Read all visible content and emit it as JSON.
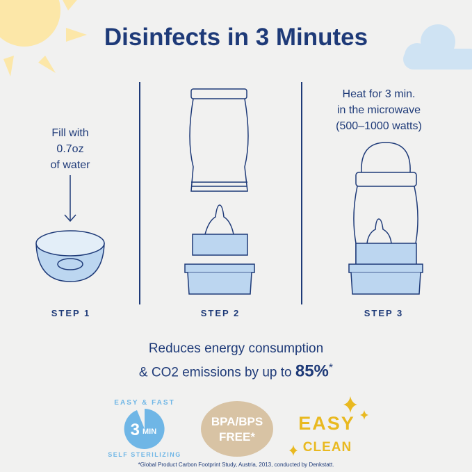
{
  "title": "Disinfects in 3 Minutes",
  "steps": [
    {
      "label": "STEP 1",
      "text": [
        "Fill with",
        "0.7oz",
        "of water"
      ]
    },
    {
      "label": "STEP 2"
    },
    {
      "label": "STEP 3",
      "text": [
        "Heat for 3 min.",
        "in the microwave",
        "(500–1000 watts)"
      ]
    }
  ],
  "energy": {
    "line1": "Reduces energy consumption",
    "line2": "& CO2 emissions by up to",
    "percent": "85%",
    "mark": "*"
  },
  "badges": {
    "sterilizing": {
      "top": "EASY & FAST",
      "bottom": "SELF STERILIZING",
      "num": "3",
      "unit": "MIN"
    },
    "bpa": {
      "line1": "BPA/BPS",
      "line2": "FREE*"
    },
    "clean": {
      "line1": "EASY",
      "line2": "CLEAN"
    }
  },
  "footnote": "*Global Product Carbon Footprint Study, Austria, 2013, conducted by Denkstatt.",
  "colors": {
    "navy": "#1e3a78",
    "lightblue": "#bcd6f0",
    "badgeblue": "#6fb6e6",
    "tan": "#d8c3a4",
    "gold": "#e9b920",
    "sun": "#fbe6a6",
    "cloud": "#cfe3f3"
  }
}
